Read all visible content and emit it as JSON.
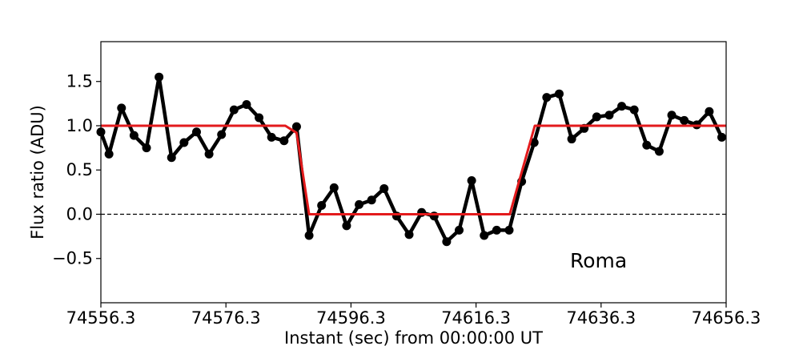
{
  "chart_data": {
    "type": "line",
    "xlabel": "Instant (sec) from 00:00:00 UT",
    "ylabel": "Flux ratio (ADU)",
    "xlim": [
      74556.3,
      74656.3
    ],
    "ylim": [
      -1.0,
      1.95
    ],
    "x_ticks": [
      74556.3,
      74576.3,
      74596.3,
      74616.3,
      74636.3,
      74656.3
    ],
    "x_tick_labels": [
      "74556.3",
      "74576.3",
      "74596.3",
      "74616.3",
      "74636.3",
      "74656.3"
    ],
    "y_ticks": [
      -0.5,
      0.0,
      0.5,
      1.0,
      1.5
    ],
    "y_tick_labels": [
      "−0.5",
      "0.0",
      "0.5",
      "1.0",
      "1.5"
    ],
    "grid": false,
    "legend": "none",
    "annotation": "Roma",
    "reference_line": {
      "y": 0.0,
      "style": "dashed",
      "color": "#000000"
    },
    "series": [
      {
        "style": "line-markers",
        "color": "#000000",
        "points": [
          [
            74556.3,
            0.93
          ],
          [
            74557.6,
            0.68
          ],
          [
            74559.6,
            1.2
          ],
          [
            74561.6,
            0.89
          ],
          [
            74563.6,
            0.75
          ],
          [
            74565.6,
            1.55
          ],
          [
            74567.6,
            0.64
          ],
          [
            74569.6,
            0.81
          ],
          [
            74571.6,
            0.93
          ],
          [
            74573.6,
            0.68
          ],
          [
            74575.6,
            0.9
          ],
          [
            74577.6,
            1.18
          ],
          [
            74579.6,
            1.24
          ],
          [
            74581.6,
            1.09
          ],
          [
            74583.6,
            0.87
          ],
          [
            74585.6,
            0.83
          ],
          [
            74587.6,
            0.99
          ],
          [
            74589.6,
            -0.24
          ],
          [
            74591.6,
            0.1
          ],
          [
            74593.6,
            0.3
          ],
          [
            74595.6,
            -0.13
          ],
          [
            74597.6,
            0.11
          ],
          [
            74599.6,
            0.16
          ],
          [
            74601.6,
            0.29
          ],
          [
            74603.6,
            -0.02
          ],
          [
            74605.6,
            -0.23
          ],
          [
            74607.6,
            0.02
          ],
          [
            74609.6,
            -0.02
          ],
          [
            74611.6,
            -0.31
          ],
          [
            74613.6,
            -0.18
          ],
          [
            74615.6,
            0.38
          ],
          [
            74617.6,
            -0.24
          ],
          [
            74619.6,
            -0.18
          ],
          [
            74621.6,
            -0.18
          ],
          [
            74623.6,
            0.37
          ],
          [
            74625.6,
            0.81
          ],
          [
            74627.6,
            1.32
          ],
          [
            74629.6,
            1.36
          ],
          [
            74631.6,
            0.85
          ],
          [
            74633.6,
            0.97
          ],
          [
            74635.6,
            1.1
          ],
          [
            74637.6,
            1.12
          ],
          [
            74639.6,
            1.22
          ],
          [
            74641.6,
            1.18
          ],
          [
            74643.6,
            0.78
          ],
          [
            74645.6,
            0.71
          ],
          [
            74647.6,
            1.12
          ],
          [
            74649.6,
            1.06
          ],
          [
            74651.6,
            1.01
          ],
          [
            74653.6,
            1.16
          ],
          [
            74655.6,
            0.87
          ],
          [
            74656.3,
            0.87
          ]
        ]
      },
      {
        "style": "line",
        "color": "#e31a1c",
        "points": [
          [
            74556.3,
            1.0
          ],
          [
            74585.8,
            1.0
          ],
          [
            74587.6,
            0.92
          ],
          [
            74589.6,
            0.0
          ],
          [
            74621.7,
            0.0
          ],
          [
            74625.7,
            1.0
          ],
          [
            74656.3,
            1.0
          ]
        ]
      }
    ]
  }
}
